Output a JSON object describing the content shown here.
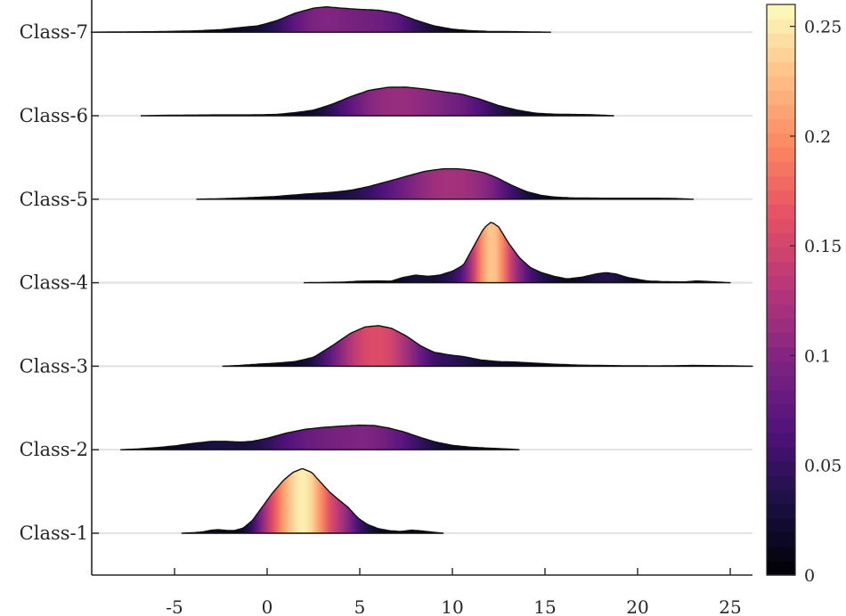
{
  "chart_data": {
    "type": "ridgeline",
    "title": "",
    "xlabel": "",
    "ylabel": "",
    "xlim": [
      -9.5,
      26.2
    ],
    "x_ticks": [
      {
        "value": -5,
        "label": "-5"
      },
      {
        "value": 0,
        "label": "0"
      },
      {
        "value": 5,
        "label": "5"
      },
      {
        "value": 10,
        "label": "10"
      },
      {
        "value": 15,
        "label": "15"
      },
      {
        "value": 20,
        "label": "20"
      },
      {
        "value": 25,
        "label": "25"
      }
    ],
    "grid": "horizontal baselines",
    "colormap": "magma",
    "colorbar": {
      "placement": "right",
      "range": [
        0,
        0.26
      ],
      "ticks": [
        {
          "value": 0,
          "label": "0"
        },
        {
          "value": 0.05,
          "label": "0.05"
        },
        {
          "value": 0.1,
          "label": "0.1"
        },
        {
          "value": 0.15,
          "label": "0.15"
        },
        {
          "value": 0.2,
          "label": "0.2"
        },
        {
          "value": 0.25,
          "label": "0.25"
        }
      ]
    },
    "series": [
      {
        "name": "Class-1",
        "density": [
          [
            -4.6,
            0
          ],
          [
            -4,
            0.002
          ],
          [
            -3.5,
            0.005
          ],
          [
            -3,
            0.012
          ],
          [
            -2.6,
            0.014
          ],
          [
            -2.2,
            0.011
          ],
          [
            -1.8,
            0.01
          ],
          [
            -1.3,
            0.02
          ],
          [
            -0.8,
            0.05
          ],
          [
            -0.3,
            0.1
          ],
          [
            0.3,
            0.16
          ],
          [
            0.9,
            0.21
          ],
          [
            1.4,
            0.24
          ],
          [
            1.9,
            0.255
          ],
          [
            2.4,
            0.24
          ],
          [
            2.9,
            0.2
          ],
          [
            3.4,
            0.16
          ],
          [
            3.9,
            0.13
          ],
          [
            4.4,
            0.1
          ],
          [
            4.9,
            0.06
          ],
          [
            5.4,
            0.035
          ],
          [
            6,
            0.018
          ],
          [
            6.6,
            0.01
          ],
          [
            7.2,
            0.007
          ],
          [
            7.8,
            0.012
          ],
          [
            8.2,
            0.01
          ],
          [
            8.7,
            0.006
          ],
          [
            9.2,
            0.002
          ],
          [
            9.5,
            0
          ]
        ]
      },
      {
        "name": "Class-2",
        "density": [
          [
            -7.9,
            0
          ],
          [
            -7,
            0.003
          ],
          [
            -6,
            0.008
          ],
          [
            -5,
            0.015
          ],
          [
            -4,
            0.025
          ],
          [
            -3,
            0.033
          ],
          [
            -2.2,
            0.033
          ],
          [
            -1.5,
            0.03
          ],
          [
            -0.8,
            0.033
          ],
          [
            0,
            0.045
          ],
          [
            1,
            0.065
          ],
          [
            2,
            0.08
          ],
          [
            3,
            0.088
          ],
          [
            4,
            0.093
          ],
          [
            5,
            0.097
          ],
          [
            5.8,
            0.095
          ],
          [
            6.6,
            0.085
          ],
          [
            7.4,
            0.07
          ],
          [
            8.2,
            0.05
          ],
          [
            9,
            0.032
          ],
          [
            10,
            0.017
          ],
          [
            11,
            0.01
          ],
          [
            12,
            0.006
          ],
          [
            13,
            0.003
          ],
          [
            13.6,
            0
          ]
        ]
      },
      {
        "name": "Class-3",
        "density": [
          [
            -2.4,
            0
          ],
          [
            -1.5,
            0.003
          ],
          [
            -0.5,
            0.008
          ],
          [
            0.5,
            0.012
          ],
          [
            1.5,
            0.018
          ],
          [
            2.5,
            0.035
          ],
          [
            3.5,
            0.08
          ],
          [
            4.5,
            0.13
          ],
          [
            5.3,
            0.155
          ],
          [
            6,
            0.16
          ],
          [
            6.7,
            0.15
          ],
          [
            7.5,
            0.12
          ],
          [
            8.3,
            0.08
          ],
          [
            9,
            0.055
          ],
          [
            9.8,
            0.045
          ],
          [
            10.6,
            0.038
          ],
          [
            11.5,
            0.025
          ],
          [
            12.5,
            0.018
          ],
          [
            13.5,
            0.016
          ],
          [
            14.5,
            0.012
          ],
          [
            15.5,
            0.008
          ],
          [
            17,
            0.004
          ],
          [
            19,
            0.002
          ],
          [
            21,
            0.001
          ],
          [
            23,
            0.003
          ],
          [
            24.5,
            0.002
          ],
          [
            26.2,
            0
          ]
        ]
      },
      {
        "name": "Class-4",
        "density": [
          [
            2,
            0
          ],
          [
            3,
            0.001
          ],
          [
            4,
            0.002
          ],
          [
            5,
            0.006
          ],
          [
            6,
            0.007
          ],
          [
            6.7,
            0.006
          ],
          [
            7.3,
            0.02
          ],
          [
            8,
            0.03
          ],
          [
            8.7,
            0.025
          ],
          [
            9.3,
            0.03
          ],
          [
            10,
            0.045
          ],
          [
            10.6,
            0.07
          ],
          [
            11.2,
            0.15
          ],
          [
            11.7,
            0.215
          ],
          [
            12.1,
            0.24
          ],
          [
            12.5,
            0.22
          ],
          [
            13,
            0.16
          ],
          [
            13.6,
            0.1
          ],
          [
            14.2,
            0.06
          ],
          [
            14.8,
            0.04
          ],
          [
            15.5,
            0.025
          ],
          [
            16.2,
            0.015
          ],
          [
            17,
            0.022
          ],
          [
            17.8,
            0.035
          ],
          [
            18.3,
            0.04
          ],
          [
            18.8,
            0.035
          ],
          [
            19.5,
            0.02
          ],
          [
            20.5,
            0.007
          ],
          [
            21.5,
            0.004
          ],
          [
            22.5,
            0.003
          ],
          [
            23.2,
            0.007
          ],
          [
            24,
            0.004
          ],
          [
            25,
            0
          ]
        ]
      },
      {
        "name": "Class-5",
        "density": [
          [
            -3.8,
            0
          ],
          [
            -2.5,
            0.002
          ],
          [
            -1,
            0.006
          ],
          [
            0.5,
            0.011
          ],
          [
            2,
            0.02
          ],
          [
            3.5,
            0.027
          ],
          [
            4.5,
            0.035
          ],
          [
            5.5,
            0.05
          ],
          [
            6.5,
            0.07
          ],
          [
            7.5,
            0.09
          ],
          [
            8.5,
            0.11
          ],
          [
            9.5,
            0.12
          ],
          [
            10.3,
            0.12
          ],
          [
            11,
            0.115
          ],
          [
            11.7,
            0.105
          ],
          [
            12.4,
            0.085
          ],
          [
            13.2,
            0.055
          ],
          [
            14,
            0.03
          ],
          [
            14.8,
            0.015
          ],
          [
            15.6,
            0.008
          ],
          [
            16.5,
            0.005
          ],
          [
            18,
            0.004
          ],
          [
            19.5,
            0.004
          ],
          [
            21,
            0.004
          ],
          [
            22,
            0.003
          ],
          [
            23,
            0
          ]
        ]
      },
      {
        "name": "Class-6",
        "density": [
          [
            -6.8,
            0
          ],
          [
            -5,
            0.002
          ],
          [
            -3,
            0.003
          ],
          [
            -1,
            0.003
          ],
          [
            0.5,
            0.005
          ],
          [
            1.5,
            0.012
          ],
          [
            2.5,
            0.022
          ],
          [
            3.5,
            0.045
          ],
          [
            4.5,
            0.075
          ],
          [
            5.5,
            0.1
          ],
          [
            6.5,
            0.112
          ],
          [
            7.5,
            0.113
          ],
          [
            8.5,
            0.105
          ],
          [
            9.5,
            0.095
          ],
          [
            10.5,
            0.085
          ],
          [
            11.5,
            0.065
          ],
          [
            12.5,
            0.04
          ],
          [
            13.5,
            0.022
          ],
          [
            14.5,
            0.01
          ],
          [
            15.5,
            0.006
          ],
          [
            16.5,
            0.005
          ],
          [
            17.5,
            0.004
          ],
          [
            18.7,
            0
          ]
        ]
      },
      {
        "name": "Class-7",
        "density": [
          [
            -9.5,
            0
          ],
          [
            -8,
            0.001
          ],
          [
            -6,
            0.002
          ],
          [
            -4,
            0.005
          ],
          [
            -2.5,
            0.01
          ],
          [
            -1.5,
            0.018
          ],
          [
            -0.5,
            0.025
          ],
          [
            0.5,
            0.045
          ],
          [
            1.5,
            0.075
          ],
          [
            2.5,
            0.095
          ],
          [
            3.2,
            0.1
          ],
          [
            4,
            0.095
          ],
          [
            5,
            0.09
          ],
          [
            6,
            0.087
          ],
          [
            7,
            0.075
          ],
          [
            8,
            0.048
          ],
          [
            9,
            0.025
          ],
          [
            10,
            0.012
          ],
          [
            11,
            0.006
          ],
          [
            12,
            0.003
          ],
          [
            13.5,
            0.002
          ],
          [
            15.3,
            0
          ]
        ]
      }
    ]
  }
}
